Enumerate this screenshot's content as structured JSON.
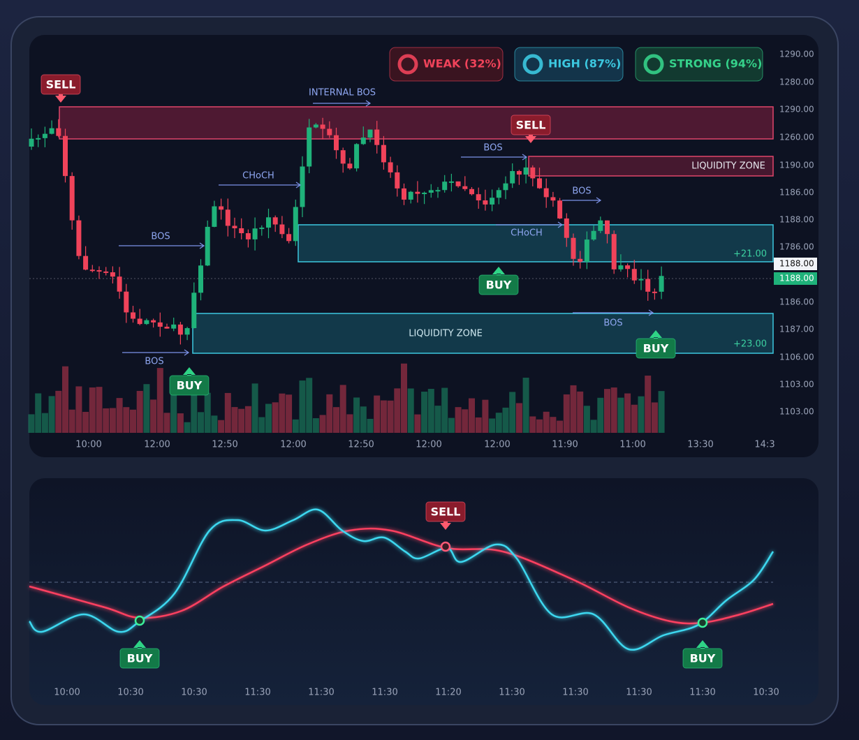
{
  "badges": [
    "WEAK (32%)",
    "HIGH (87%)",
    "STRONG (94%)"
  ],
  "price_axis": [
    "1290.00",
    "1280.00",
    "1290.00",
    "1260.00",
    "1190.00",
    "1186.00",
    "1188.00",
    "1786.00",
    "1186.00",
    "1187.00",
    "1106.00",
    "1103.00",
    "1103.00"
  ],
  "price_tags": [
    "1188.00",
    "1188.00"
  ],
  "time_axis": [
    "10:00",
    "12:00",
    "12:50",
    "12:00",
    "12:50",
    "12:00",
    "12:00",
    "11:90",
    "11:00",
    "13:30",
    "14:3"
  ],
  "annotations": [
    "SELL",
    "SELL",
    "BUY",
    "BUY",
    "BUY",
    "INTERNAL BOS",
    "BOS",
    "BOS",
    "CHoCH",
    "BOS",
    "CHoCH",
    "BOS",
    "BOS",
    "LIQUIDITY ZONE",
    "LIQUIDITY ZONE",
    "+21.00",
    "+23.00"
  ],
  "oscillator": {
    "time_axis": [
      "10:00",
      "10:30",
      "10:30",
      "11:30",
      "11:30",
      "11:30",
      "11:20",
      "11:30",
      "11:30",
      "11:30",
      "11:30",
      "10:30"
    ],
    "signals": [
      "BUY",
      "SELL",
      "BUY"
    ]
  }
}
